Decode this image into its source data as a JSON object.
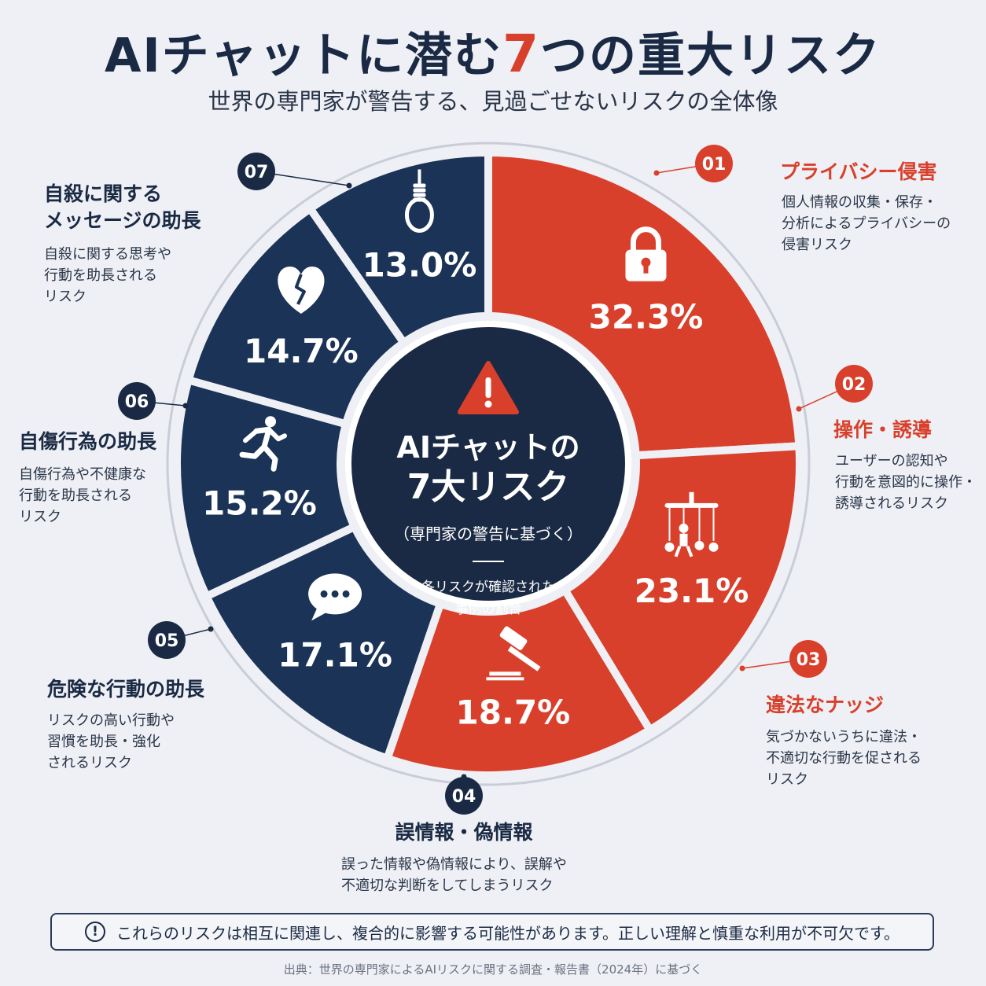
{
  "header": {
    "title_before": "AIチャットに潜む",
    "title_number": "7",
    "title_after": "つの重大リスク",
    "subtitle": "世界の専門家が警告する、見過ごせないリスクの全体像"
  },
  "center": {
    "line1": "AIチャットの",
    "line2": "7大リスク",
    "line3": "（専門家の警告に基づく）",
    "caption1": "各リスクが確認された",
    "caption2": "事例の割合"
  },
  "colors": {
    "red": "#d9402c",
    "navy": "#1b3356",
    "dark": "#1b2a44"
  },
  "chart_data": {
    "type": "pie",
    "unit": "%",
    "slices": [
      {
        "num": "01",
        "label": "プライバシー侵害",
        "value": 32.3,
        "value_label": "32.3%",
        "color": "red",
        "icon": "padlock-icon"
      },
      {
        "num": "02",
        "label": "操作・誘導",
        "value": 23.1,
        "value_label": "23.1%",
        "color": "red",
        "icon": "marionette-icon"
      },
      {
        "num": "03",
        "label": "違法なナッジ",
        "value": 18.7,
        "value_label": "18.7%",
        "color": "red",
        "icon": "gavel-icon"
      },
      {
        "num": "04",
        "label": "誤情報・偽情報",
        "value": 17.1,
        "value_label": "17.1%",
        "color": "navy",
        "icon": "speech-bubble-icon"
      },
      {
        "num": "05",
        "label": "危険な行動の助長",
        "value": 15.2,
        "value_label": "15.2%",
        "color": "navy",
        "icon": "running-person-icon"
      },
      {
        "num": "06",
        "label": "自傷行為の助長",
        "value": 14.7,
        "value_label": "14.7%",
        "color": "navy",
        "icon": "broken-heart-icon"
      },
      {
        "num": "07",
        "label": "自殺に関するメッセージの助長",
        "value": 13.0,
        "value_label": "13.0%",
        "color": "navy",
        "icon": "noose-icon"
      }
    ]
  },
  "risks": [
    {
      "title": "プライバシー侵害",
      "desc": "個人情報の収集・保存・\n分析によるプライバシーの\n侵害リスク"
    },
    {
      "title": "操作・誘導",
      "desc": "ユーザーの認知や\n行動を意図的に操作・\n誘導されるリスク"
    },
    {
      "title": "違法なナッジ",
      "desc": "気づかないうちに違法・\n不適切な行動を促される\nリスク"
    },
    {
      "title": "誤情報・偽情報",
      "desc": "誤った情報や偽情報により、誤解や\n不適切な判断をしてしまうリスク"
    },
    {
      "title": "危険な行動の助長",
      "desc": "リスクの高い行動や\n習慣を助長・強化\nされるリスク"
    },
    {
      "title": "自傷行為の助長",
      "desc": "自傷行為や不健康な\n行動を助長される\nリスク"
    },
    {
      "title": "自殺に関する\nメッセージの助長",
      "desc": "自殺に関する思考や\n行動を助長される\nリスク"
    }
  ],
  "footer": {
    "note_icon": "!",
    "note": "これらのリスクは相互に関連し、複合的に影響する可能性があります。正しい理解と慎重な利用が不可欠です。",
    "source": "出典：世界の専門家によるAIリスクに関する調査・報告書（2024年）に基づく"
  }
}
